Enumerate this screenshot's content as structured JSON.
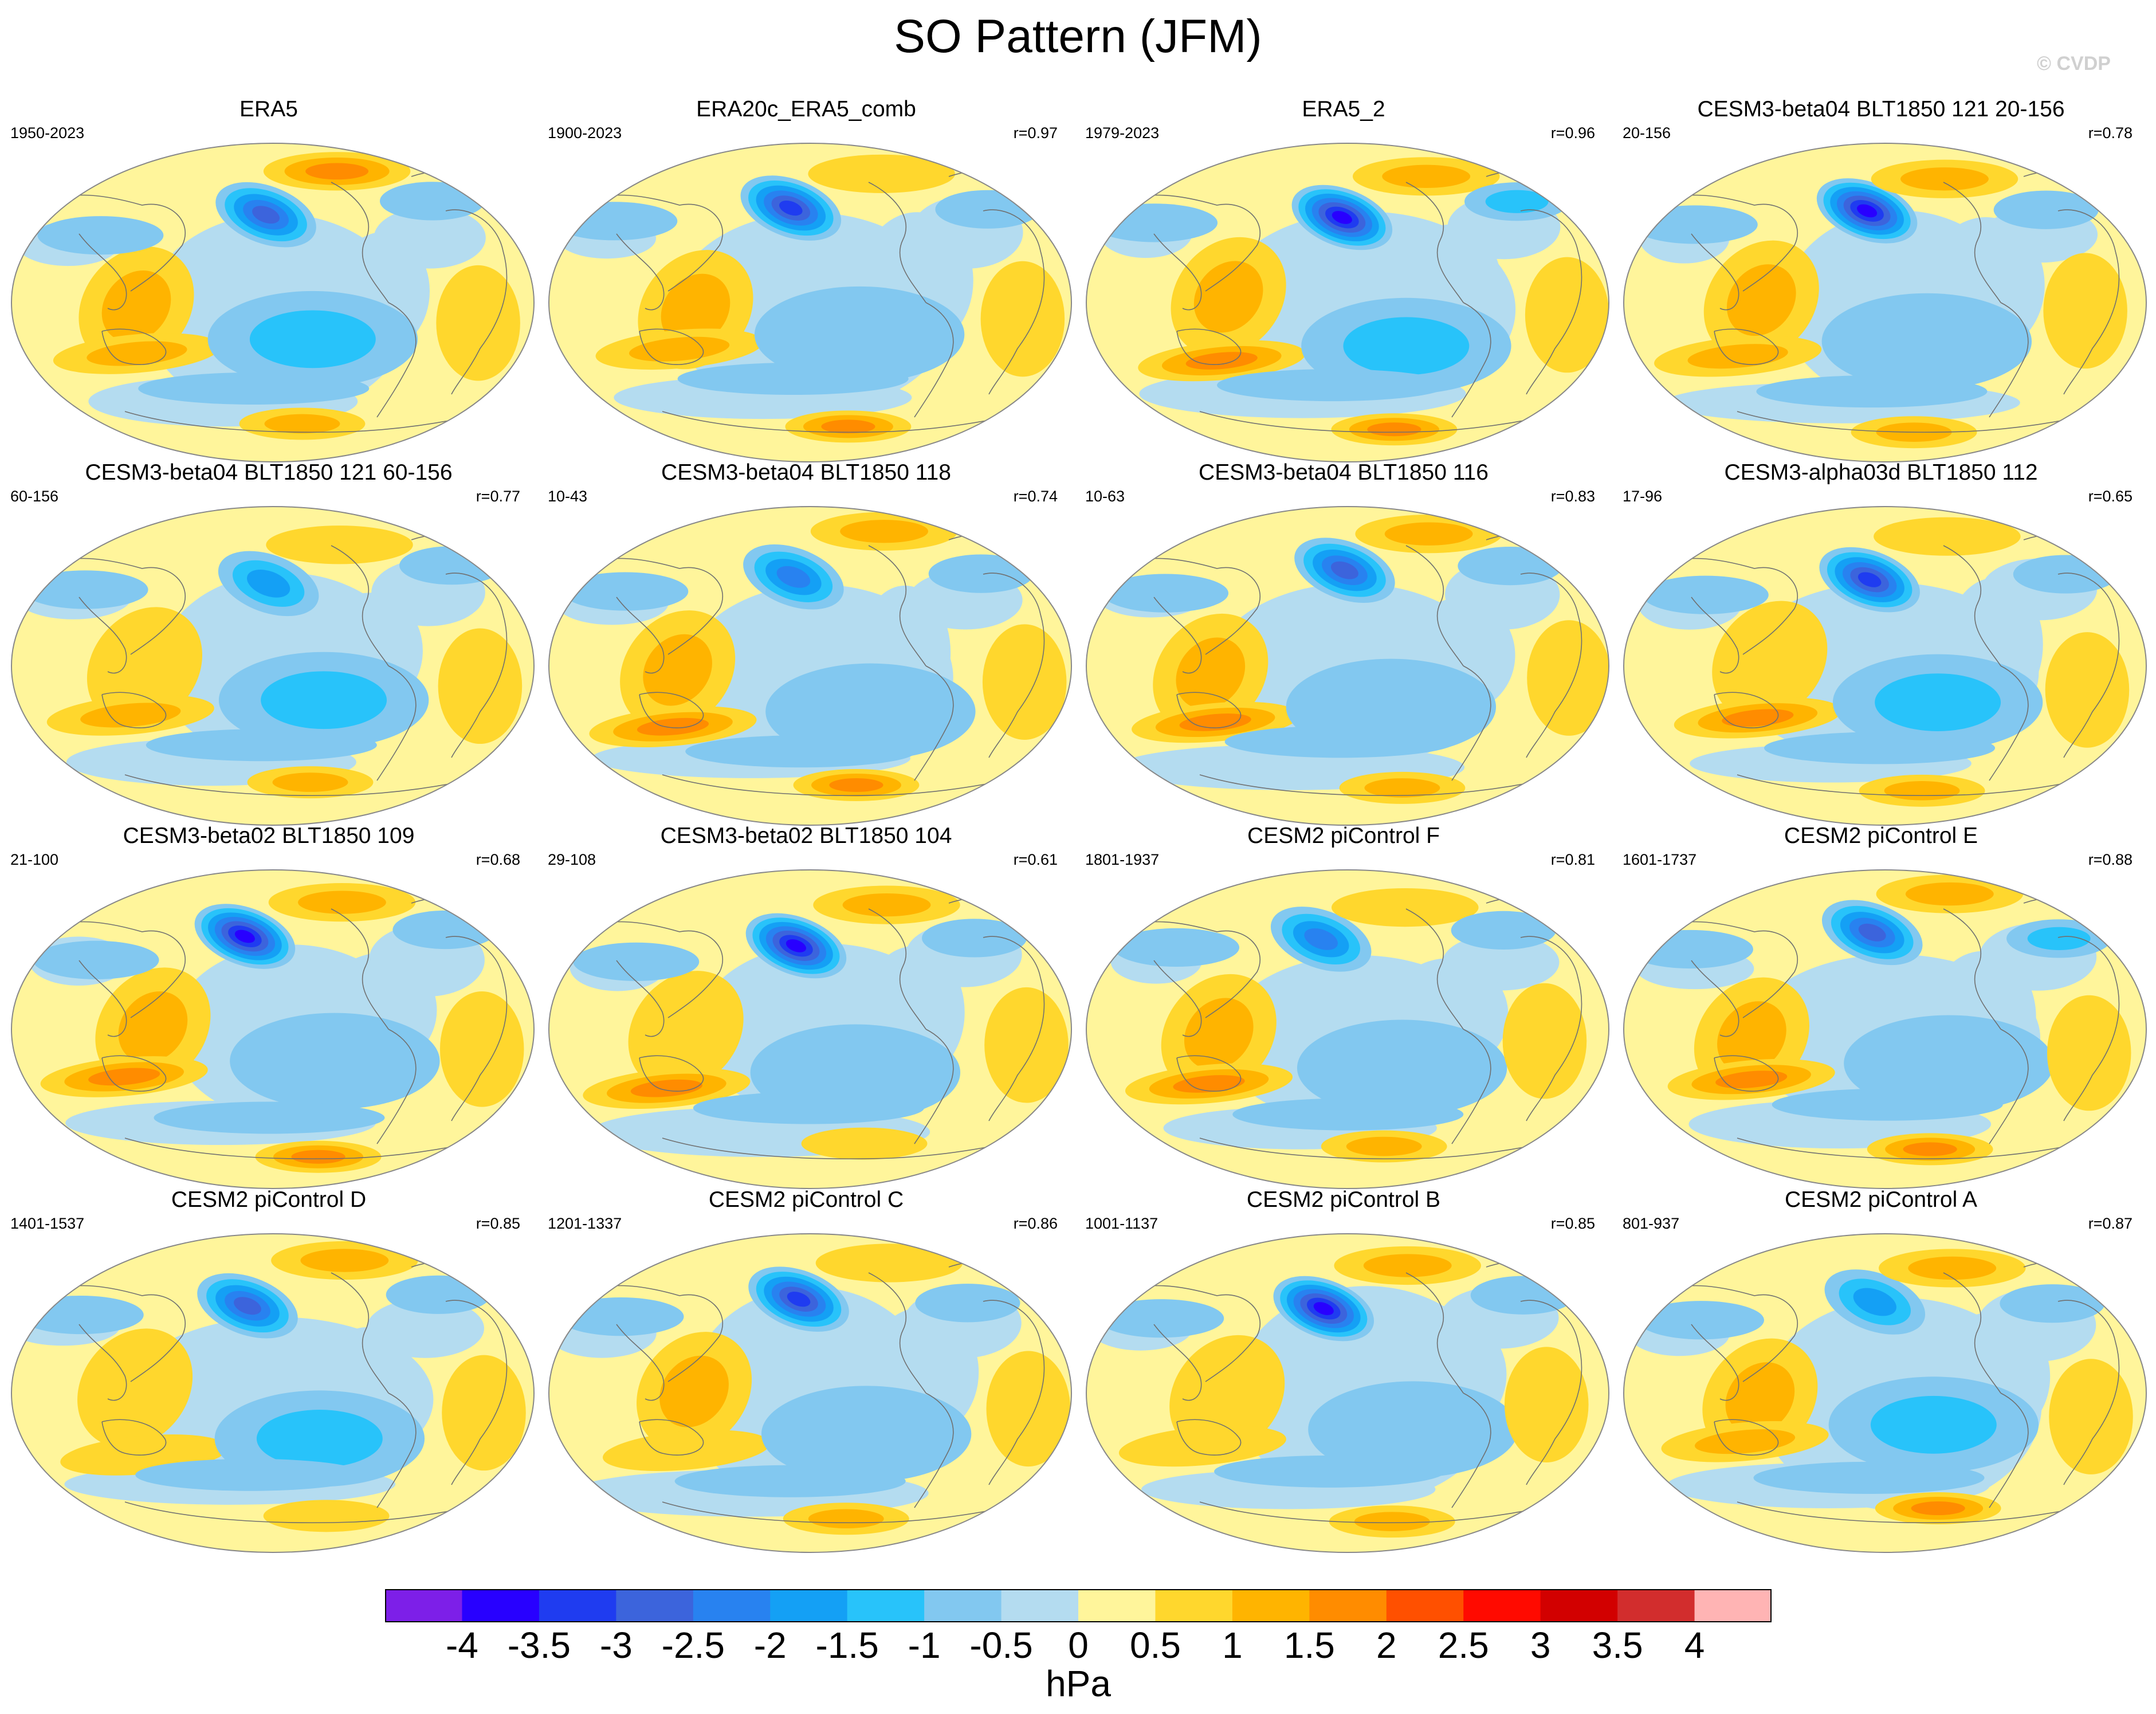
{
  "title": "SO Pattern (JFM)",
  "copyright": "© CVDP",
  "chart_data": {
    "type": "heatmap",
    "title": "SO Pattern (JFM)",
    "projection": "Robinson, global, centered on Pacific",
    "units": "hPa",
    "panels": [
      {
        "name": "ERA5",
        "years": "1950-2023",
        "r": ""
      },
      {
        "name": "ERA20c_ERA5_comb",
        "years": "1900-2023",
        "r": "r=0.97"
      },
      {
        "name": "ERA5_2",
        "years": "1979-2023",
        "r": "r=0.96"
      },
      {
        "name": "CESM3-beta04 BLT1850 121 20-156",
        "years": "20-156",
        "r": "r=0.78"
      },
      {
        "name": "CESM3-beta04 BLT1850 121 60-156",
        "years": "60-156",
        "r": "r=0.77"
      },
      {
        "name": "CESM3-beta04 BLT1850 118",
        "years": "10-43",
        "r": "r=0.74"
      },
      {
        "name": "CESM3-beta04 BLT1850 116",
        "years": "10-63",
        "r": "r=0.83"
      },
      {
        "name": "CESM3-alpha03d BLT1850 112",
        "years": "17-96",
        "r": "r=0.65"
      },
      {
        "name": "CESM3-beta02 BLT1850 109",
        "years": "21-100",
        "r": "r=0.68"
      },
      {
        "name": "CESM3-beta02 BLT1850 104",
        "years": "29-108",
        "r": "r=0.61"
      },
      {
        "name": "CESM2 piControl F",
        "years": "1801-1937",
        "r": "r=0.81"
      },
      {
        "name": "CESM2 piControl E",
        "years": "1601-1737",
        "r": "r=0.88"
      },
      {
        "name": "CESM2 piControl D",
        "years": "1401-1537",
        "r": "r=0.85"
      },
      {
        "name": "CESM2 piControl C",
        "years": "1201-1337",
        "r": "r=0.86"
      },
      {
        "name": "CESM2 piControl B",
        "years": "1001-1137",
        "r": "r=0.85"
      },
      {
        "name": "CESM2 piControl A",
        "years": "801-937",
        "r": "r=0.87"
      }
    ],
    "colorbar": {
      "levels": [
        "-4",
        "-3.5",
        "-3",
        "-2.5",
        "-2",
        "-1.5",
        "-1",
        "-0.5",
        "0",
        "0.5",
        "1",
        "1.5",
        "2",
        "2.5",
        "3",
        "3.5",
        "4"
      ],
      "colors": [
        "#7d1fe8",
        "#2800ff",
        "#1f3cf0",
        "#3c64dc",
        "#2882f0",
        "#14a0f5",
        "#28c3fa",
        "#82c8f0",
        "#b4dcf0",
        "#fff59b",
        "#ffd72d",
        "#ffb400",
        "#ff8c00",
        "#ff5000",
        "#ff0a00",
        "#d20000",
        "#d22d2d",
        "#ffb4b4"
      ],
      "units": "hPa"
    }
  }
}
